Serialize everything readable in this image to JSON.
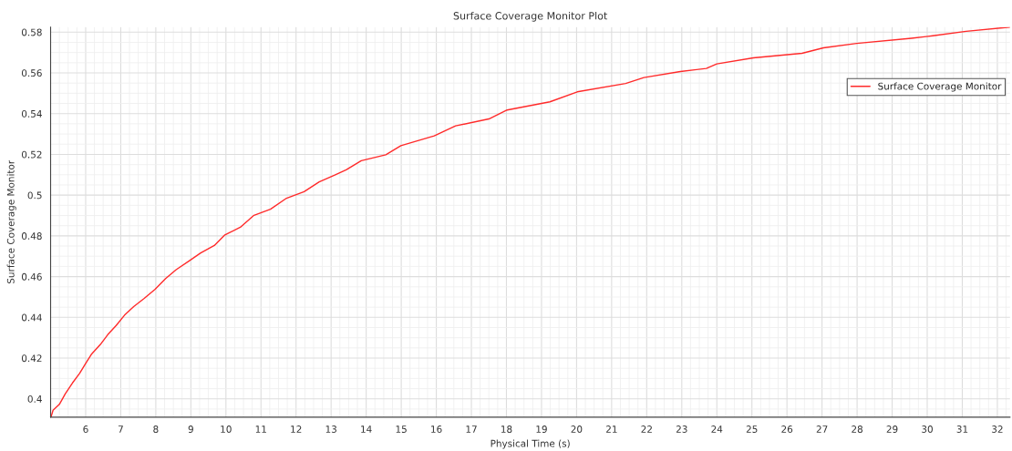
{
  "chart_data": {
    "type": "line",
    "title": "Surface Coverage Monitor Plot",
    "xlabel": "Physical Time (s)",
    "ylabel": "Surface Coverage Monitor",
    "xlim": [
      5.0,
      32.36
    ],
    "ylim": [
      0.391,
      0.5825
    ],
    "xticks": [
      6,
      7,
      8,
      9,
      10,
      11,
      12,
      13,
      14,
      15,
      16,
      17,
      18,
      19,
      20,
      21,
      22,
      23,
      24,
      25,
      26,
      27,
      28,
      29,
      30,
      31,
      32
    ],
    "yticks": [
      0.4,
      0.42,
      0.44,
      0.46,
      0.48,
      0.5,
      0.52,
      0.54,
      0.56,
      0.58
    ],
    "grid": true,
    "legend": "top right",
    "marker": "none",
    "line_style": "solid",
    "series": [
      {
        "name": "Surface Coverage Monitor",
        "color": "#ff2a2a",
        "x": [
          5.01,
          5.07,
          5.25,
          5.42,
          5.62,
          5.83,
          6.0,
          6.16,
          6.42,
          6.63,
          6.87,
          7.11,
          7.37,
          7.67,
          7.98,
          8.28,
          8.58,
          8.97,
          9.28,
          9.67,
          9.97,
          10.41,
          10.8,
          11.27,
          11.71,
          12.23,
          12.66,
          13.09,
          13.43,
          13.86,
          14.56,
          14.99,
          15.94,
          16.55,
          17.5,
          18.02,
          19.24,
          20.02,
          21.4,
          21.92,
          22.96,
          23.7,
          24.0,
          25.04,
          26.43,
          27.04,
          27.99,
          29.55,
          30.16,
          31.11,
          32.36
        ],
        "values": [
          0.391,
          0.3944,
          0.3973,
          0.4025,
          0.4077,
          0.4126,
          0.4174,
          0.4218,
          0.4267,
          0.4315,
          0.436,
          0.4411,
          0.4453,
          0.4493,
          0.4538,
          0.459,
          0.4634,
          0.4679,
          0.4716,
          0.4753,
          0.4805,
          0.4842,
          0.4901,
          0.4931,
          0.4983,
          0.5017,
          0.5065,
          0.5097,
          0.5124,
          0.5169,
          0.5198,
          0.5243,
          0.5291,
          0.534,
          0.5374,
          0.5418,
          0.5458,
          0.5507,
          0.5548,
          0.5577,
          0.5607,
          0.5622,
          0.5644,
          0.5674,
          0.5696,
          0.5723,
          0.5745,
          0.577,
          0.5782,
          0.5804,
          0.5825
        ]
      }
    ]
  }
}
